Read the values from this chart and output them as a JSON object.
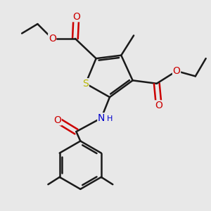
{
  "bg_color": "#e8e8e8",
  "bond_color": "#1a1a1a",
  "S_color": "#b8b800",
  "N_color": "#0000cc",
  "O_color": "#cc0000",
  "bond_width": 1.8,
  "font_size_atom": 10,
  "font_size_small": 8,
  "xlim": [
    0,
    10
  ],
  "ylim": [
    0,
    10
  ]
}
